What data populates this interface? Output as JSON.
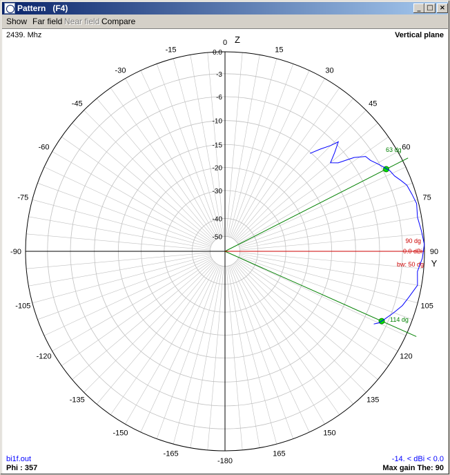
{
  "window": {
    "title": "Pattern   (F4)",
    "minimize": "_",
    "maximize": "□",
    "close": "×"
  },
  "menu": [
    {
      "label": "Show",
      "disabled": false
    },
    {
      "label": "Far field",
      "disabled": false
    },
    {
      "label": "Near field",
      "disabled": true
    },
    {
      "label": "Compare",
      "disabled": false
    }
  ],
  "plot": {
    "frequency": "2439. Mhz",
    "plane": "Vertical plane",
    "file": "bi1f.out",
    "phi": "Phi : 357",
    "range": "-14. < dBi < 0.0",
    "max_gain": "Max gain The: 90",
    "axis_top": "Z",
    "axis_right": "Y",
    "angle_labels": [
      "0",
      "15",
      "30",
      "45",
      "60",
      "75",
      "90",
      "105",
      "120",
      "135",
      "150",
      "165",
      "-180",
      "-165",
      "-150",
      "-135",
      "-120",
      "-105",
      "-90",
      "-75",
      "-60",
      "-45",
      "-30",
      "-15"
    ],
    "ring_labels": [
      "0.0",
      "-3",
      "-6",
      "-10",
      "-15",
      "-20",
      "-30",
      "-40",
      "-50"
    ],
    "markers": {
      "beam_start": "63 dg",
      "beam_end": "114 dg",
      "max_angle": "90 dg",
      "max_gain": "0.0 dBi",
      "beamwidth": "bw: 50 dg"
    },
    "colors": {
      "pattern": "#0000ff",
      "beam": "#008000",
      "max": "#cc0000",
      "grid": "#c0c0c0",
      "axes": "#000000"
    }
  }
}
